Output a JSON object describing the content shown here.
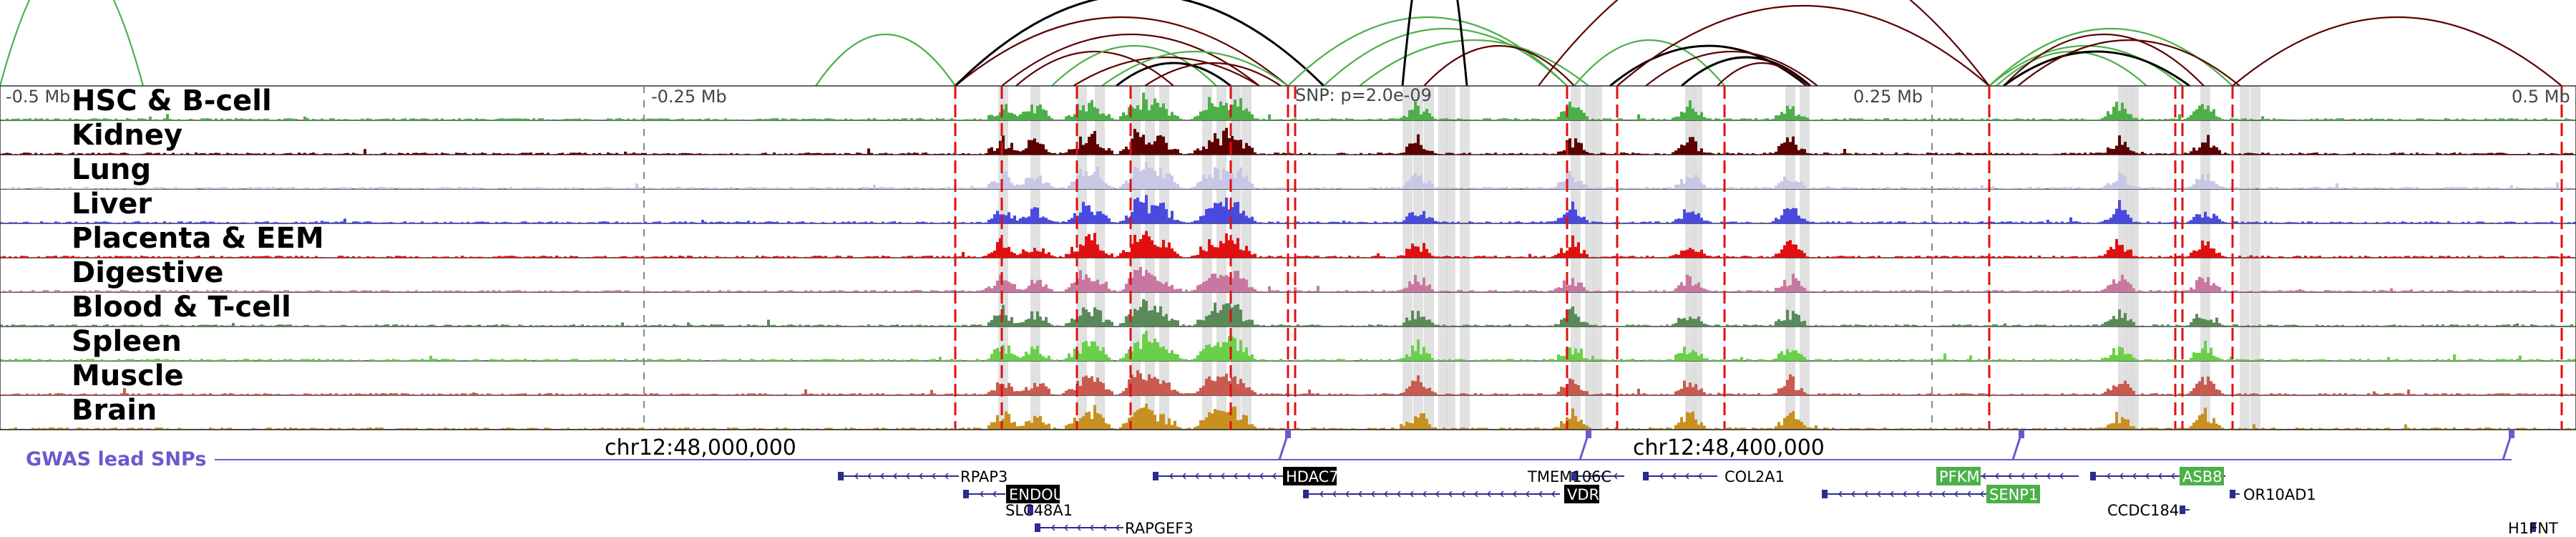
{
  "axis": {
    "tick_labels": [
      "-0.5 Mb",
      "-0.25 Mb",
      "SNP: p=2.0e-09",
      "0.25 Mb",
      "0.5 Mb"
    ]
  },
  "tracks": [
    {
      "label": "HSC & B-cell",
      "color": "#4daf4a"
    },
    {
      "label": "Kidney",
      "color": "#5c0000"
    },
    {
      "label": "Lung",
      "color": "#c8c8e6"
    },
    {
      "label": "Liver",
      "color": "#4a4ae0"
    },
    {
      "label": "Placenta & EEM",
      "color": "#e01010"
    },
    {
      "label": "Digestive",
      "color": "#c878a0"
    },
    {
      "label": "Blood & T-cell",
      "color": "#5a8a5a"
    },
    {
      "label": "Spleen",
      "color": "#6ad04a"
    },
    {
      "label": "Muscle",
      "color": "#c85a50"
    },
    {
      "label": "Brain",
      "color": "#c89020"
    }
  ],
  "gwas": {
    "label": "GWAS lead SNPs",
    "color": "#6a5acd"
  },
  "coordinates": [
    "chr12:48,000,000",
    "chr12:48,400,000"
  ],
  "genes": [
    {
      "name": "RPAP3",
      "highlight": false
    },
    {
      "name": "ENDOU",
      "highlight": "black"
    },
    {
      "name": "SLC48A1",
      "highlight": false
    },
    {
      "name": "RAPGEF3",
      "highlight": false
    },
    {
      "name": "HDAC7",
      "highlight": "black"
    },
    {
      "name": "TMEM106C",
      "highlight": false
    },
    {
      "name": "VDR",
      "highlight": "black"
    },
    {
      "name": "COL2A1",
      "highlight": false
    },
    {
      "name": "PFKM",
      "highlight": "green"
    },
    {
      "name": "SENP1",
      "highlight": "green"
    },
    {
      "name": "ASB8",
      "highlight": "green"
    },
    {
      "name": "CCDC184",
      "highlight": false
    },
    {
      "name": "OR10AD1",
      "highlight": false
    },
    {
      "name": "H1FNT",
      "highlight": false
    }
  ],
  "colors": {
    "loop_green": "#4daf4a",
    "loop_dark": "#5c0000",
    "loop_black": "#000000",
    "red_line": "#e01010",
    "gene_blue": "#2c2c8c"
  }
}
